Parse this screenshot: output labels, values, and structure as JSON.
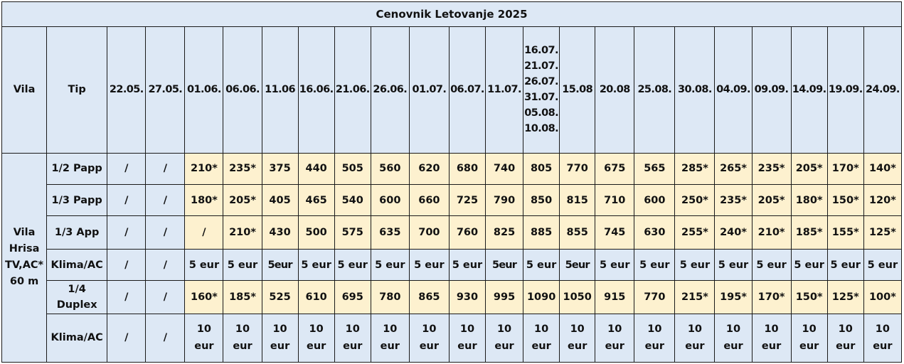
{
  "colors": {
    "cell_blue": "#dde8f5",
    "cell_yellow": "#fdf1cf",
    "border": "#1a1a1a"
  },
  "title": "Cenovnik Letovanje 2025",
  "headers": {
    "vila": "Vila",
    "tip": "Tip",
    "dates": [
      "22.05.",
      "27.05.",
      "01.06.",
      "06.06.",
      "11.06",
      "16.06.",
      "21.06.",
      "26.06.",
      "01.07.",
      "06.07.",
      "11.07.",
      "16.07.; 21.07.; 26.07.; 31.07.; 05.08. 10.08.",
      "15.08",
      "20.08",
      "25.08.",
      "30.08.",
      "04.09.",
      "09.09.",
      "14.09.",
      "19.09.",
      "24.09."
    ]
  },
  "multi_date_lines": [
    "16.07.;",
    "21.07.;",
    "26.07.;",
    "31.07.;",
    "05.08.",
    "10.08."
  ],
  "villa": {
    "name_lines": [
      "Vila",
      "Hrisa",
      "TV,AC*",
      "60 m"
    ]
  },
  "rows": [
    {
      "tip": "1/2 Papp",
      "values": [
        "/",
        "/",
        "210*",
        "235*",
        "375",
        "440",
        "505",
        "560",
        "620",
        "680",
        "740",
        "805",
        "770",
        "675",
        "565",
        "285*",
        "265*",
        "235*",
        "205*",
        "170*",
        "140*"
      ]
    },
    {
      "tip": "1/3 Papp",
      "values": [
        "/",
        "/",
        "180*",
        "205*",
        "405",
        "465",
        "540",
        "600",
        "660",
        "725",
        "790",
        "850",
        "815",
        "710",
        "600",
        "250*",
        "235*",
        "205*",
        "180*",
        "150*",
        "120*"
      ]
    },
    {
      "tip": "1/3 App",
      "values": [
        "/",
        "/",
        "/",
        "210*",
        "430",
        "500",
        "575",
        "635",
        "700",
        "760",
        "825",
        "885",
        "855",
        "745",
        "630",
        "255*",
        "240*",
        "210*",
        "185*",
        "155*",
        "125*"
      ]
    },
    {
      "tip": "Klima/AC",
      "values": [
        "/",
        "/",
        "5 eur",
        "5 eur",
        "5eur",
        "5 eur",
        "5 eur",
        "5 eur",
        "5 eur",
        "5 eur",
        "5eur",
        "5 eur",
        "5eur",
        "5 eur",
        "5 eur",
        "5 eur",
        "5 eur",
        "5 eur",
        "5 eur",
        "5 eur",
        "5 eur"
      ]
    },
    {
      "tip": "1/4 Duplex",
      "values": [
        "/",
        "/",
        "160*",
        "185*",
        "525",
        "610",
        "695",
        "780",
        "865",
        "930",
        "995",
        "1090",
        "1050",
        "915",
        "770",
        "215*",
        "195*",
        "170*",
        "150*",
        "125*",
        "100*"
      ]
    },
    {
      "tip": "Klima/AC",
      "values": [
        "/",
        "/",
        "10 eur",
        "10 eur",
        "10 eur",
        "10 eur",
        "10 eur",
        "10 eur",
        "10 eur",
        "10 eur",
        "10 eur",
        "10 eur",
        "10 eur",
        "10 eur",
        "10 eur",
        "10 eur",
        "10 eur",
        "10 eur",
        "10 eur",
        "10 eur",
        "10 eur"
      ]
    }
  ]
}
